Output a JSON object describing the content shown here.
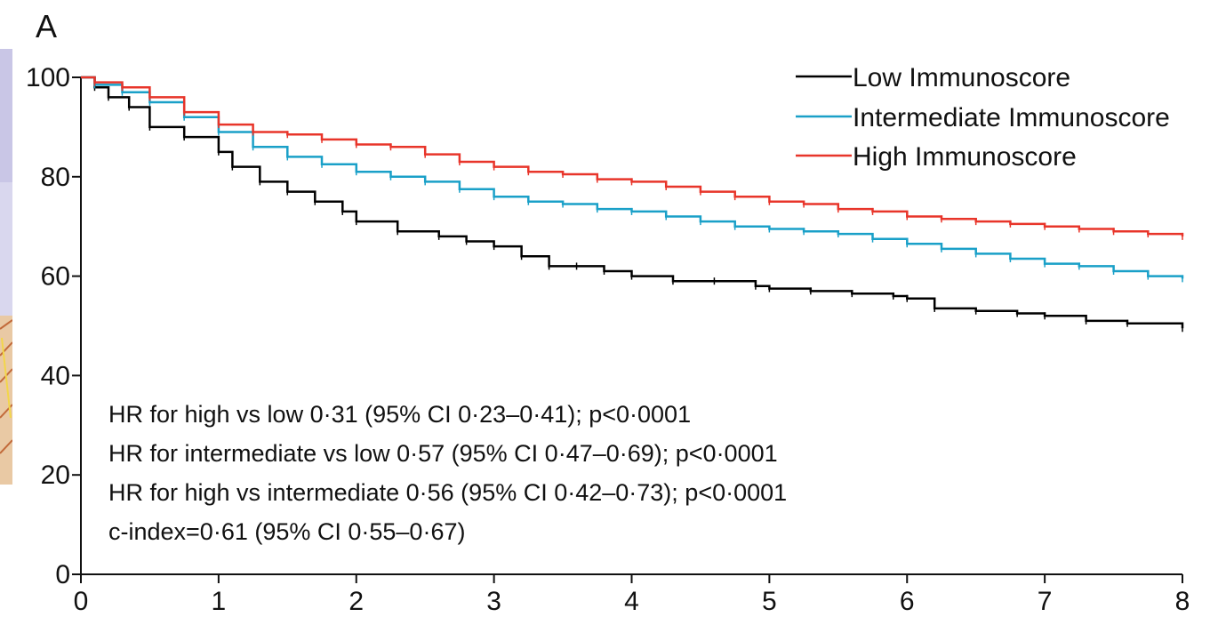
{
  "chart_data": {
    "type": "line",
    "panel_label": "A",
    "xlabel": "",
    "ylabel": "",
    "xlim": [
      0,
      8
    ],
    "ylim": [
      0,
      100
    ],
    "x_ticks": [
      "0",
      "1",
      "2",
      "3",
      "4",
      "5",
      "6",
      "7",
      "8"
    ],
    "y_ticks": [
      "0",
      "20",
      "40",
      "60",
      "80",
      "100"
    ],
    "grid": false,
    "legend_position": "top-right",
    "series": [
      {
        "name": "Low Immunoscore",
        "color": "#000000",
        "x": [
          0,
          0.1,
          0.2,
          0.35,
          0.5,
          0.75,
          1.0,
          1.1,
          1.3,
          1.5,
          1.7,
          1.9,
          2.0,
          2.3,
          2.6,
          2.8,
          3.0,
          3.2,
          3.4,
          3.6,
          3.8,
          4.0,
          4.3,
          4.6,
          4.9,
          5.0,
          5.3,
          5.6,
          5.9,
          6.0,
          6.2,
          6.5,
          6.8,
          7.0,
          7.3,
          7.6,
          8.0
        ],
        "y": [
          100,
          98,
          96,
          94,
          90,
          88,
          85,
          82,
          79,
          77,
          75,
          73,
          71,
          69,
          68,
          67,
          66,
          64,
          62,
          62,
          61,
          60,
          59,
          59,
          58,
          57.5,
          57,
          56.5,
          56,
          55.5,
          53.5,
          53,
          52.5,
          52,
          51,
          50.5,
          49.5
        ]
      },
      {
        "name": "Intermediate Immunoscore",
        "color": "#1aa0c8",
        "x": [
          0,
          0.1,
          0.3,
          0.5,
          0.75,
          1.0,
          1.25,
          1.5,
          1.75,
          2.0,
          2.25,
          2.5,
          2.75,
          3.0,
          3.25,
          3.5,
          3.75,
          4.0,
          4.25,
          4.5,
          4.75,
          5.0,
          5.25,
          5.5,
          5.75,
          6.0,
          6.25,
          6.5,
          6.75,
          7.0,
          7.25,
          7.5,
          7.75,
          8.0
        ],
        "y": [
          100,
          98.5,
          97,
          95,
          92,
          89,
          86,
          84,
          82.5,
          81,
          80,
          79,
          77.5,
          76,
          75,
          74.5,
          73.5,
          73,
          72,
          71,
          70,
          69.5,
          69,
          68.5,
          67.5,
          66.5,
          65.5,
          64.5,
          63.5,
          62.5,
          62,
          61,
          60,
          59.5
        ]
      },
      {
        "name": "High Immunoscore",
        "color": "#e8352a",
        "x": [
          0,
          0.1,
          0.3,
          0.5,
          0.75,
          1.0,
          1.25,
          1.5,
          1.75,
          2.0,
          2.25,
          2.5,
          2.75,
          3.0,
          3.25,
          3.5,
          3.75,
          4.0,
          4.25,
          4.5,
          4.75,
          5.0,
          5.25,
          5.5,
          5.75,
          6.0,
          6.25,
          6.5,
          6.75,
          7.0,
          7.25,
          7.5,
          7.75,
          8.0
        ],
        "y": [
          100,
          99,
          98,
          96,
          93,
          90.5,
          89,
          88.5,
          87.5,
          86.5,
          86,
          84.5,
          83,
          82,
          81,
          80.5,
          79.5,
          79,
          78,
          77,
          76,
          75,
          74.5,
          73.5,
          73,
          72,
          71.5,
          71,
          70.5,
          70,
          69.5,
          69,
          68.5,
          68
        ]
      }
    ],
    "annotations": [
      "HR for high vs low 0·31 (95% CI 0·23–0·41); p<0·0001",
      "HR for intermediate vs low 0·57 (95% CI 0·47–0·69); p<0·0001",
      "HR for high vs intermediate 0·56 (95% CI 0·42–0·73); p<0·0001",
      "c-index=0·61 (95% CI 0·55–0·67)"
    ]
  }
}
